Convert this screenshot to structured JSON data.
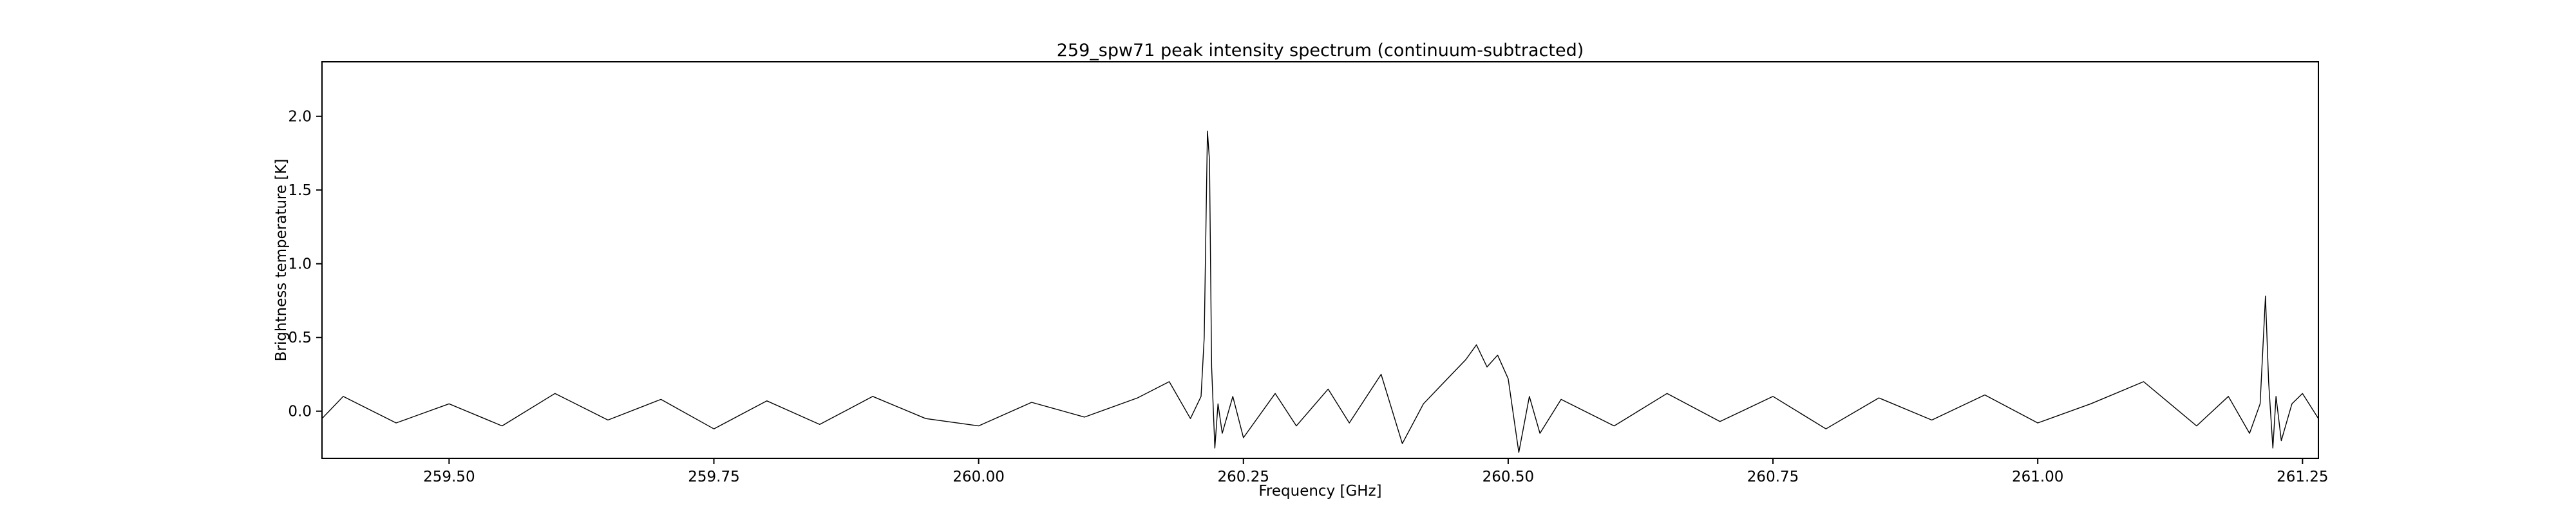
{
  "chart_data": {
    "type": "line",
    "title": "259_spw71 peak intensity spectrum (continuum-subtracted)",
    "xlabel": "Frequency [GHz]",
    "ylabel": "Brightness temperature [K]",
    "xlim": [
      259.38,
      261.265
    ],
    "ylim": [
      -0.32,
      2.37
    ],
    "x_ticks": [
      259.5,
      259.75,
      260.0,
      260.25,
      260.5,
      260.75,
      261.0,
      261.25
    ],
    "x_tick_labels": [
      "259.50",
      "259.75",
      "260.00",
      "260.25",
      "260.50",
      "260.75",
      "261.00",
      "261.25"
    ],
    "y_ticks": [
      0.0,
      0.5,
      1.0,
      1.5,
      2.0
    ],
    "y_tick_labels": [
      "0.0",
      "0.5",
      "1.0",
      "1.5",
      "2.0"
    ],
    "grid": false,
    "line_color": "#000000",
    "series": [
      {
        "x": [
          259.38,
          259.4,
          259.45,
          259.5,
          259.55,
          259.6,
          259.65,
          259.7,
          259.75,
          259.8,
          259.85,
          259.9,
          259.95,
          260.0,
          260.05,
          260.1,
          260.15,
          260.18,
          260.2,
          260.21,
          260.213,
          260.216,
          260.218,
          260.22,
          260.223,
          260.226,
          260.23,
          260.24,
          260.25,
          260.28,
          260.3,
          260.33,
          260.35,
          260.38,
          260.4,
          260.42,
          260.44,
          260.46,
          260.47,
          260.48,
          260.49,
          260.5,
          260.51,
          260.52,
          260.53,
          260.55,
          260.6,
          260.65,
          260.7,
          260.75,
          260.8,
          260.85,
          260.9,
          260.95,
          261.0,
          261.05,
          261.1,
          261.15,
          261.18,
          261.2,
          261.21,
          261.215,
          261.218,
          261.222,
          261.225,
          261.23,
          261.24,
          261.25,
          261.265
        ],
        "y": [
          -0.05,
          0.1,
          -0.08,
          0.05,
          -0.1,
          0.12,
          -0.06,
          0.08,
          -0.12,
          0.07,
          -0.09,
          0.1,
          -0.05,
          -0.1,
          0.06,
          -0.04,
          0.09,
          0.2,
          -0.05,
          0.1,
          0.5,
          1.9,
          1.7,
          0.3,
          -0.25,
          0.05,
          -0.15,
          0.1,
          -0.18,
          0.12,
          -0.1,
          0.15,
          -0.08,
          0.25,
          -0.22,
          0.05,
          0.2,
          0.35,
          0.45,
          0.3,
          0.38,
          0.22,
          -0.28,
          0.1,
          -0.15,
          0.08,
          -0.1,
          0.12,
          -0.07,
          0.1,
          -0.12,
          0.09,
          -0.06,
          0.11,
          -0.08,
          0.05,
          0.2,
          -0.1,
          0.1,
          -0.15,
          0.05,
          0.78,
          0.2,
          -0.25,
          0.1,
          -0.2,
          0.05,
          0.12,
          -0.05
        ]
      }
    ]
  }
}
